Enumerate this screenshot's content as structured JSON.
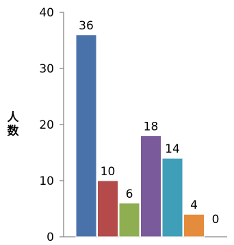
{
  "chart_data": {
    "type": "bar",
    "categories": [
      "",
      "",
      "",
      "",
      "",
      "",
      ""
    ],
    "values": [
      36,
      10,
      6,
      18,
      14,
      4,
      0
    ],
    "colors": [
      "#4a72aa",
      "#b54a4a",
      "#8fae52",
      "#7a5a9a",
      "#3f9eb8",
      "#e58b3c",
      "#6f8fbf"
    ],
    "ylabel": "人数",
    "ylim": [
      0,
      40
    ],
    "yticks": [
      0,
      10,
      20,
      30,
      40
    ],
    "grid": false,
    "legend": "none"
  }
}
